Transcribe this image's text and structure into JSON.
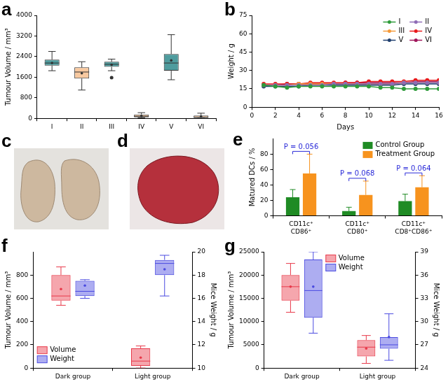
{
  "chart_data": [
    {
      "panel": "a",
      "type": "box",
      "categories": [
        "I",
        "II",
        "III",
        "IV",
        "V",
        "VI"
      ],
      "y_label": "Tumour Volume / mm³",
      "ylim": [
        0,
        4000
      ],
      "yticks": [
        0,
        800,
        1600,
        2400,
        3200,
        4000
      ],
      "series": [
        {
          "colors": [
            "#4f9c9e",
            "#f8c9a0",
            "#4f9c9e",
            "#f8c9a0",
            "#4f9c9e",
            "#f8c9a0"
          ],
          "min": [
            1850,
            1100,
            1850,
            20,
            1500,
            0
          ],
          "q1": [
            2050,
            1550,
            2000,
            40,
            1850,
            20
          ],
          "median": [
            2150,
            1800,
            2100,
            80,
            2150,
            40
          ],
          "q3": [
            2280,
            1980,
            2200,
            150,
            2500,
            110
          ],
          "max": [
            2600,
            2200,
            2300,
            220,
            3250,
            200
          ],
          "mean": [
            2150,
            1750,
            2080,
            95,
            2250,
            70
          ],
          "outliers": [
            [],
            [],
            [
              1580
            ],
            [],
            [],
            []
          ]
        }
      ]
    },
    {
      "panel": "b",
      "type": "line",
      "x_label": "Days",
      "y_label": "Weight / g",
      "xlim": [
        0,
        16
      ],
      "xticks": [
        0,
        2,
        4,
        6,
        8,
        10,
        12,
        14,
        16
      ],
      "ylim": [
        0,
        75
      ],
      "yticks": [
        0,
        15,
        30,
        45,
        60,
        75
      ],
      "legend": "upper right",
      "marker": "circle",
      "x": [
        1,
        2,
        3,
        4,
        5,
        6,
        7,
        8,
        9,
        10,
        11,
        12,
        13,
        14,
        15,
        16
      ],
      "series": [
        {
          "name": "I",
          "color": "#2e9b3a",
          "values": [
            18,
            17,
            16,
            17,
            17,
            17,
            17,
            17,
            17,
            17,
            16,
            16,
            15,
            15,
            15,
            15
          ]
        },
        {
          "name": "II",
          "color": "#8e6bb5",
          "values": [
            18,
            18,
            18,
            18,
            18,
            18,
            19,
            19,
            19,
            19,
            19,
            19,
            20,
            20,
            20,
            20
          ]
        },
        {
          "name": "III",
          "color": "#f59a3a",
          "values": [
            18,
            18,
            18,
            19,
            19,
            19,
            19,
            19,
            19,
            19,
            19,
            19,
            20,
            20,
            20,
            20
          ]
        },
        {
          "name": "IV",
          "color": "#e8191b",
          "values": [
            19,
            19,
            19,
            19,
            20,
            20,
            20,
            20,
            20,
            21,
            21,
            21,
            21,
            22,
            22,
            22
          ]
        },
        {
          "name": "V",
          "color": "#1f3f6e",
          "values": [
            17,
            17,
            17,
            17,
            18,
            18,
            18,
            18,
            18,
            18,
            18,
            18,
            19,
            19,
            19,
            19
          ]
        },
        {
          "name": "VI",
          "color": "#a0155a",
          "values": [
            18,
            18,
            19,
            19,
            19,
            19,
            19,
            20,
            20,
            20,
            20,
            20,
            20,
            21,
            21,
            21
          ]
        }
      ]
    },
    {
      "panel": "e",
      "type": "bar",
      "y_label": "Matured DCs / %",
      "categories": [
        "CD11c⁺ CD86⁺",
        "CD11c⁺ CD80⁺",
        "CD11c⁺ CD8⁺CD86⁺"
      ],
      "ylim": [
        0,
        100
      ],
      "yticks": [
        0,
        20,
        40,
        60,
        80
      ],
      "legend": "upper right",
      "series": [
        {
          "name": "Control Group",
          "color": "#1f8b24",
          "values": [
            24,
            6,
            19
          ],
          "errors": [
            10,
            5,
            9
          ]
        },
        {
          "name": "Treatment Group",
          "color": "#f7931e",
          "values": [
            55,
            27,
            37
          ],
          "errors": [
            25,
            18,
            15
          ]
        }
      ],
      "annotations": [
        "P = 0.056",
        "P = 0.068",
        "P = 0.064"
      ]
    },
    {
      "panel": "f",
      "type": "box",
      "categories": [
        "Dark group",
        "Light group"
      ],
      "y_label": "Tumour Volume / mm³",
      "ylim": [
        0,
        1000
      ],
      "yticks": [
        0,
        200,
        400,
        600,
        800
      ],
      "y2_label": "Mice Weight / g",
      "y2lim": [
        10,
        20
      ],
      "y2ticks": [
        10,
        12,
        14,
        16,
        18,
        20
      ],
      "legend": "lower left",
      "series": [
        {
          "name": "Volume",
          "color": "#e8394a",
          "min": [
            540,
            0
          ],
          "q1": [
            580,
            20
          ],
          "median": [
            620,
            60
          ],
          "q3": [
            800,
            170
          ],
          "max": [
            870,
            190
          ],
          "mean": [
            680,
            90
          ]
        },
        {
          "name": "Weight",
          "color": "#4a4ae0",
          "axis": "y2",
          "min": [
            16,
            16.2
          ],
          "q1": [
            16.2,
            18
          ],
          "median": [
            16.6,
            19
          ],
          "q3": [
            17.5,
            19.3
          ],
          "max": [
            17.6,
            19.7
          ],
          "mean": [
            17.1,
            18.5
          ]
        }
      ]
    },
    {
      "panel": "g",
      "type": "box",
      "categories": [
        "Dark group",
        "Light group"
      ],
      "y_label": "Tumour Volume / mm³",
      "ylim": [
        0,
        25000
      ],
      "yticks": [
        0,
        5000,
        10000,
        15000,
        20000,
        25000
      ],
      "y2_label": "Mice Weight / g",
      "y2lim": [
        24,
        39
      ],
      "y2ticks": [
        24,
        27,
        30,
        33,
        36,
        39
      ],
      "legend": "upper center",
      "series": [
        {
          "name": "Volume",
          "color": "#e8394a",
          "min": [
            12000,
            1000
          ],
          "q1": [
            14500,
            2500
          ],
          "median": [
            17500,
            4500
          ],
          "q3": [
            20000,
            6000
          ],
          "max": [
            22500,
            7000
          ],
          "mean": [
            17500,
            4200
          ]
        },
        {
          "name": "Weight",
          "color": "#4a4ae0",
          "axis": "y2",
          "min": [
            28.5,
            25
          ],
          "q1": [
            30.5,
            26.5
          ],
          "median": [
            34,
            27
          ],
          "q3": [
            38,
            28
          ],
          "max": [
            39,
            31
          ],
          "mean": [
            34.5,
            28
          ]
        }
      ]
    }
  ],
  "images": [
    {
      "panel": "c"
    },
    {
      "panel": "d"
    }
  ]
}
